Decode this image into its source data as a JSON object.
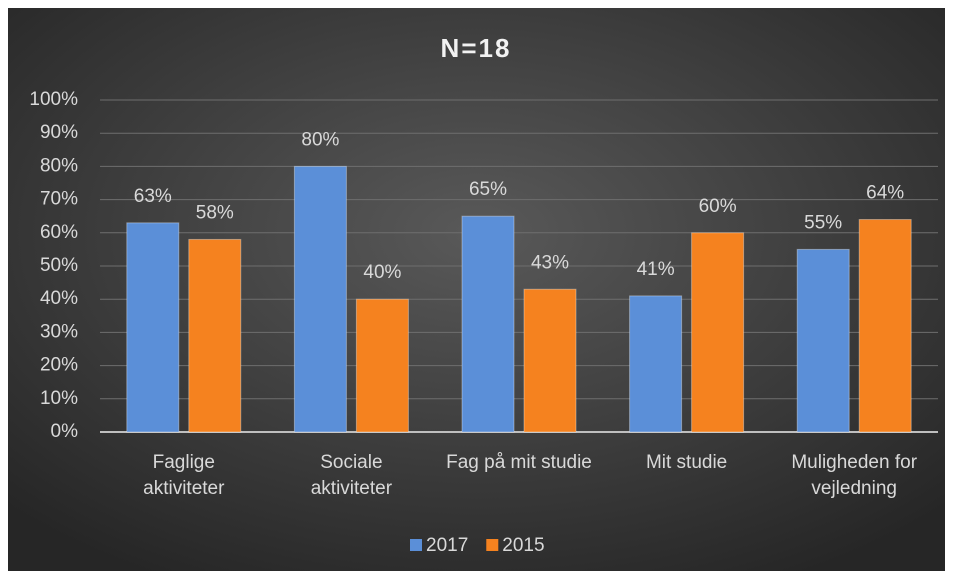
{
  "chart_data": {
    "type": "bar",
    "title": "N=18",
    "categories": [
      "Faglige\naktiviteter",
      "Sociale\naktiviteter",
      "Fag på mit studie",
      "Mit studie",
      "Muligheden for\nvejledning"
    ],
    "series": [
      {
        "name": "2017",
        "color": "#5b8fd8",
        "values": [
          63,
          80,
          65,
          41,
          55
        ],
        "value_labels": [
          "63%",
          "80%",
          "65%",
          "41%",
          "55%"
        ]
      },
      {
        "name": "2015",
        "color": "#f5821f",
        "values": [
          58,
          40,
          43,
          60,
          64
        ],
        "value_labels": [
          "58%",
          "40%",
          "43%",
          "60%",
          "64%"
        ]
      }
    ],
    "ylim": [
      0,
      100
    ],
    "yticks": [
      {
        "value": 0,
        "label": "0%"
      },
      {
        "value": 10,
        "label": "10%"
      },
      {
        "value": 20,
        "label": "20%"
      },
      {
        "value": 30,
        "label": "30%"
      },
      {
        "value": 40,
        "label": "40%"
      },
      {
        "value": 50,
        "label": "50%"
      },
      {
        "value": 60,
        "label": "60%"
      },
      {
        "value": 70,
        "label": "70%"
      },
      {
        "value": 80,
        "label": "80%"
      },
      {
        "value": 90,
        "label": "90%"
      },
      {
        "value": 100,
        "label": "100%"
      }
    ],
    "grid": true,
    "legend": "bottom"
  }
}
